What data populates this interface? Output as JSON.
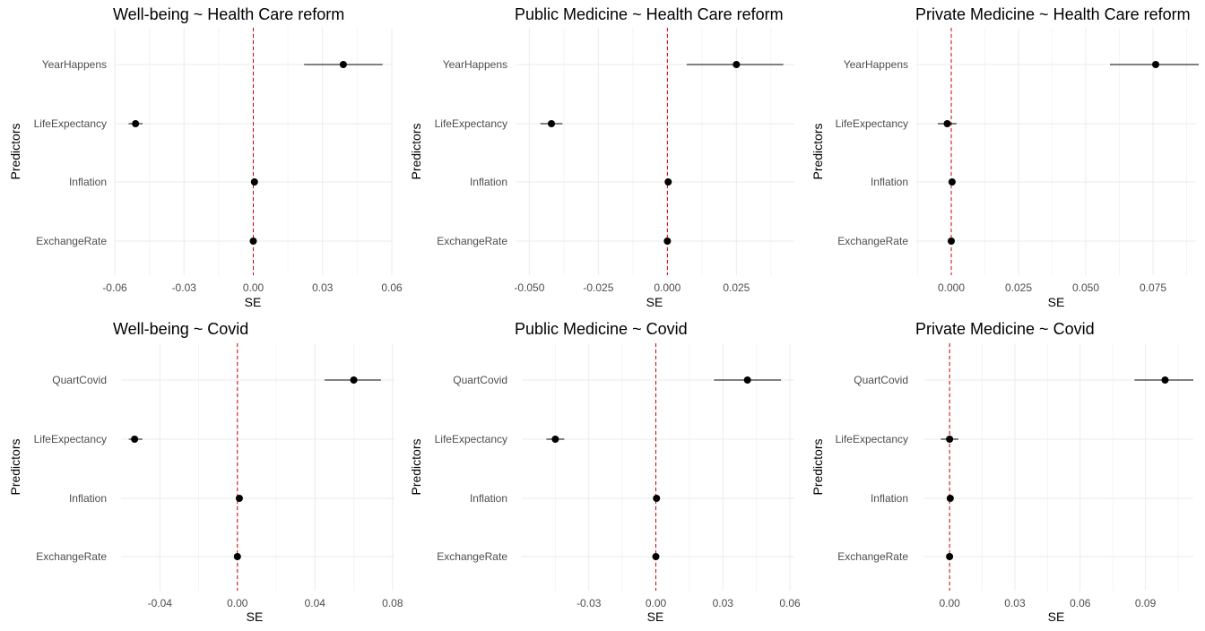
{
  "colors": {
    "ref_line": "#cc0000",
    "point": "#000000",
    "grid_major": "#ebebeb",
    "grid_minor": "#f5f5f5",
    "text": "#4d4d4d"
  },
  "chart_data": [
    {
      "type": "scatter",
      "title": "Well-being ~ Health Care reform",
      "xlabel": "SE",
      "ylabel": "Predictors",
      "xlim": [
        -0.06,
        0.06
      ],
      "xticks": [
        -0.06,
        -0.03,
        0.0,
        0.03,
        0.06
      ],
      "xtick_labels": [
        "-0.06",
        "-0.03",
        "0.00",
        "0.03",
        "0.06"
      ],
      "reference_line": 0,
      "grid": true,
      "categories": [
        "YearHappens",
        "LifeExpectancy",
        "Inflation",
        "ExchangeRate"
      ],
      "estimates": [
        0.039,
        -0.051,
        0.0005,
        0.0
      ],
      "ci_low": [
        0.022,
        -0.054,
        -0.0005,
        -0.0008
      ],
      "ci_high": [
        0.056,
        -0.048,
        0.0015,
        0.0008
      ]
    },
    {
      "type": "scatter",
      "title": "Public Medicine ~ Health Care reform",
      "xlabel": "SE",
      "ylabel": "Predictors",
      "xlim": [
        -0.055,
        0.046
      ],
      "xticks": [
        -0.05,
        -0.025,
        0.0,
        0.025
      ],
      "xtick_labels": [
        "-0.050",
        "-0.025",
        "0.000",
        "0.025"
      ],
      "reference_line": 0,
      "grid": true,
      "categories": [
        "YearHappens",
        "LifeExpectancy",
        "Inflation",
        "ExchangeRate"
      ],
      "estimates": [
        0.025,
        -0.042,
        0.0003,
        0.0
      ],
      "ci_low": [
        0.007,
        -0.046,
        -0.0005,
        -0.0006
      ],
      "ci_high": [
        0.042,
        -0.038,
        0.0011,
        0.0006
      ]
    },
    {
      "type": "scatter",
      "title": "Private Medicine ~ Health Care reform",
      "xlabel": "SE",
      "ylabel": "Predictors",
      "xlim": [
        -0.013,
        0.091
      ],
      "xticks": [
        0.0,
        0.025,
        0.05,
        0.075
      ],
      "xtick_labels": [
        "0.000",
        "0.025",
        "0.050",
        "0.075"
      ],
      "reference_line": 0,
      "grid": true,
      "categories": [
        "YearHappens",
        "LifeExpectancy",
        "Inflation",
        "ExchangeRate"
      ],
      "estimates": [
        0.076,
        -0.0015,
        0.0003,
        0.0
      ],
      "ci_low": [
        0.059,
        -0.005,
        -0.0007,
        -0.0007
      ],
      "ci_high": [
        0.092,
        0.002,
        0.0013,
        0.0007
      ]
    },
    {
      "type": "scatter",
      "title": "Well-being ~ Covid",
      "xlabel": "SE",
      "ylabel": "Predictors",
      "xlim": [
        -0.06,
        0.081
      ],
      "xticks": [
        -0.04,
        0.0,
        0.04,
        0.08
      ],
      "xtick_labels": [
        "-0.04",
        "0.00",
        "0.04",
        "0.08"
      ],
      "reference_line": 0,
      "grid": true,
      "categories": [
        "QuartCovid",
        "LifeExpectancy",
        "Inflation",
        "ExchangeRate"
      ],
      "estimates": [
        0.06,
        -0.053,
        0.001,
        0.0
      ],
      "ci_low": [
        0.045,
        -0.056,
        0.0,
        -0.0008
      ],
      "ci_high": [
        0.074,
        -0.049,
        0.002,
        0.0008
      ]
    },
    {
      "type": "scatter",
      "title": "Public Medicine ~ Covid",
      "xlabel": "SE",
      "ylabel": "Predictors",
      "xlim": [
        -0.06,
        0.062
      ],
      "xticks": [
        -0.03,
        0.0,
        0.03,
        0.06
      ],
      "xtick_labels": [
        "-0.03",
        "0.00",
        "0.03",
        "0.06"
      ],
      "reference_line": 0,
      "grid": true,
      "categories": [
        "QuartCovid",
        "LifeExpectancy",
        "Inflation",
        "ExchangeRate"
      ],
      "estimates": [
        0.041,
        -0.045,
        0.0003,
        0.0
      ],
      "ci_low": [
        0.026,
        -0.049,
        -0.0005,
        -0.0006
      ],
      "ci_high": [
        0.056,
        -0.041,
        0.0011,
        0.0006
      ]
    },
    {
      "type": "scatter",
      "title": "Private Medicine ~ Covid",
      "xlabel": "SE",
      "ylabel": "Predictors",
      "xlim": [
        -0.012,
        0.112
      ],
      "xticks": [
        0.0,
        0.03,
        0.06,
        0.09
      ],
      "xtick_labels": [
        "0.00",
        "0.03",
        "0.06",
        "0.09"
      ],
      "reference_line": 0,
      "grid": true,
      "categories": [
        "QuartCovid",
        "LifeExpectancy",
        "Inflation",
        "ExchangeRate"
      ],
      "estimates": [
        0.099,
        0.0,
        0.0003,
        0.0
      ],
      "ci_low": [
        0.085,
        -0.004,
        -0.0005,
        -0.0007
      ],
      "ci_high": [
        0.112,
        0.004,
        0.0011,
        0.0007
      ]
    }
  ]
}
